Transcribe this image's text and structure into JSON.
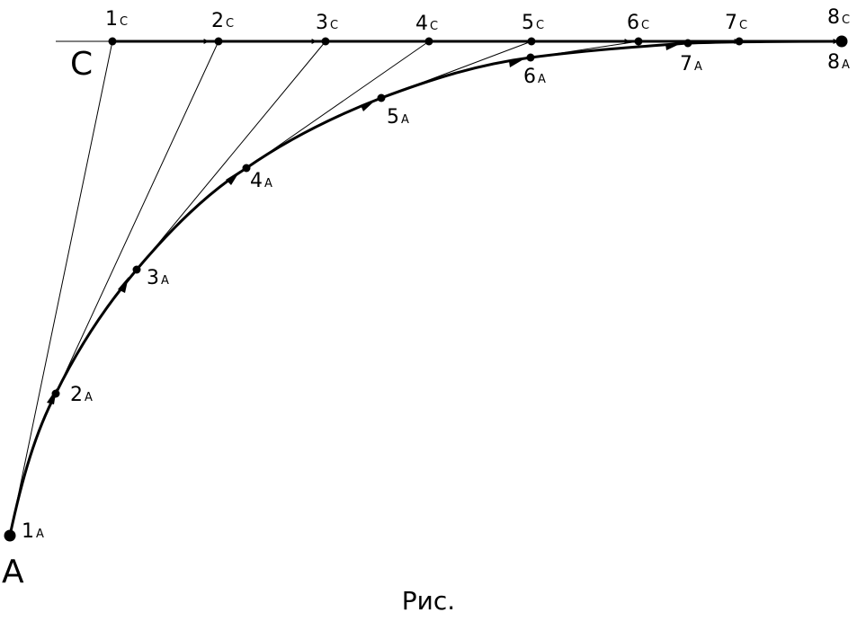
{
  "caption": "Рис.",
  "line_c_label": "C",
  "curve_a_label": "A",
  "c_points": [
    {
      "num": "1",
      "sub": "C"
    },
    {
      "num": "2",
      "sub": "C"
    },
    {
      "num": "3",
      "sub": "C"
    },
    {
      "num": "4",
      "sub": "C"
    },
    {
      "num": "5",
      "sub": "C"
    },
    {
      "num": "6",
      "sub": "C"
    },
    {
      "num": "7",
      "sub": "C"
    },
    {
      "num": "8",
      "sub": "C"
    }
  ],
  "a_points": [
    {
      "num": "1",
      "sub": "A"
    },
    {
      "num": "2",
      "sub": "A"
    },
    {
      "num": "3",
      "sub": "A"
    },
    {
      "num": "4",
      "sub": "A"
    },
    {
      "num": "5",
      "sub": "A"
    },
    {
      "num": "6",
      "sub": "A"
    },
    {
      "num": "7",
      "sub": "A"
    },
    {
      "num": "8",
      "sub": "A"
    }
  ],
  "colors": {
    "ink": "#000000",
    "background": "#ffffff"
  }
}
